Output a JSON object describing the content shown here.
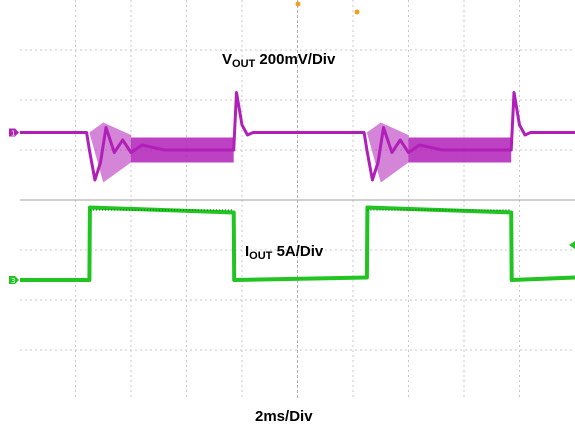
{
  "chart_data": {
    "type": "line",
    "title": "",
    "xlabel": "2ms/Div",
    "ylabel": "",
    "xlim": [
      0,
      10
    ],
    "ylim": [
      -4,
      4
    ],
    "grid": true,
    "units": {
      "x": "ms",
      "vout": "mV",
      "iout": "A"
    },
    "scales": {
      "time_per_div": "2ms/Div",
      "vout_per_div": "200mV/Div",
      "iout_per_div": "5A/Div"
    },
    "series": [
      {
        "name": "VOUT",
        "label_main": "V",
        "label_sub": "OUT",
        "label_scale": "200mV/Div",
        "color": "#b020b8",
        "marker": "1",
        "x": [
          0,
          1.2,
          1.25,
          1.35,
          1.45,
          1.55,
          1.7,
          1.85,
          2.0,
          2.2,
          2.6,
          3.6,
          3.85,
          3.9,
          4.0,
          4.1,
          4.2,
          4.4,
          6.0,
          6.2,
          6.25,
          6.35,
          6.45,
          6.55,
          6.7,
          6.85,
          7.0,
          7.2,
          7.6,
          8.6,
          8.85,
          8.9,
          9.0,
          9.1,
          9.2,
          9.4,
          10.0
        ],
        "y": [
          1.35,
          1.35,
          1.0,
          0.4,
          0.75,
          1.45,
          0.95,
          1.2,
          0.95,
          1.1,
          1.0,
          1.0,
          1.0,
          2.15,
          1.5,
          1.3,
          1.35,
          1.35,
          1.35,
          1.35,
          1.0,
          0.4,
          0.75,
          1.45,
          0.95,
          1.2,
          0.95,
          1.1,
          1.0,
          1.0,
          1.0,
          2.15,
          1.5,
          1.3,
          1.35,
          1.35,
          1.35
        ]
      },
      {
        "name": "IOUT",
        "label_main": "I",
        "label_sub": "OUT",
        "label_scale": "5A/Div",
        "color": "#22c422",
        "marker": "3",
        "x": [
          0,
          1.25,
          1.26,
          3.85,
          3.86,
          6.25,
          6.26,
          8.85,
          8.86,
          10.0
        ],
        "y": [
          -1.6,
          -1.6,
          -0.15,
          -0.25,
          -1.6,
          -1.55,
          -0.15,
          -0.25,
          -1.6,
          -1.55
        ]
      }
    ]
  }
}
